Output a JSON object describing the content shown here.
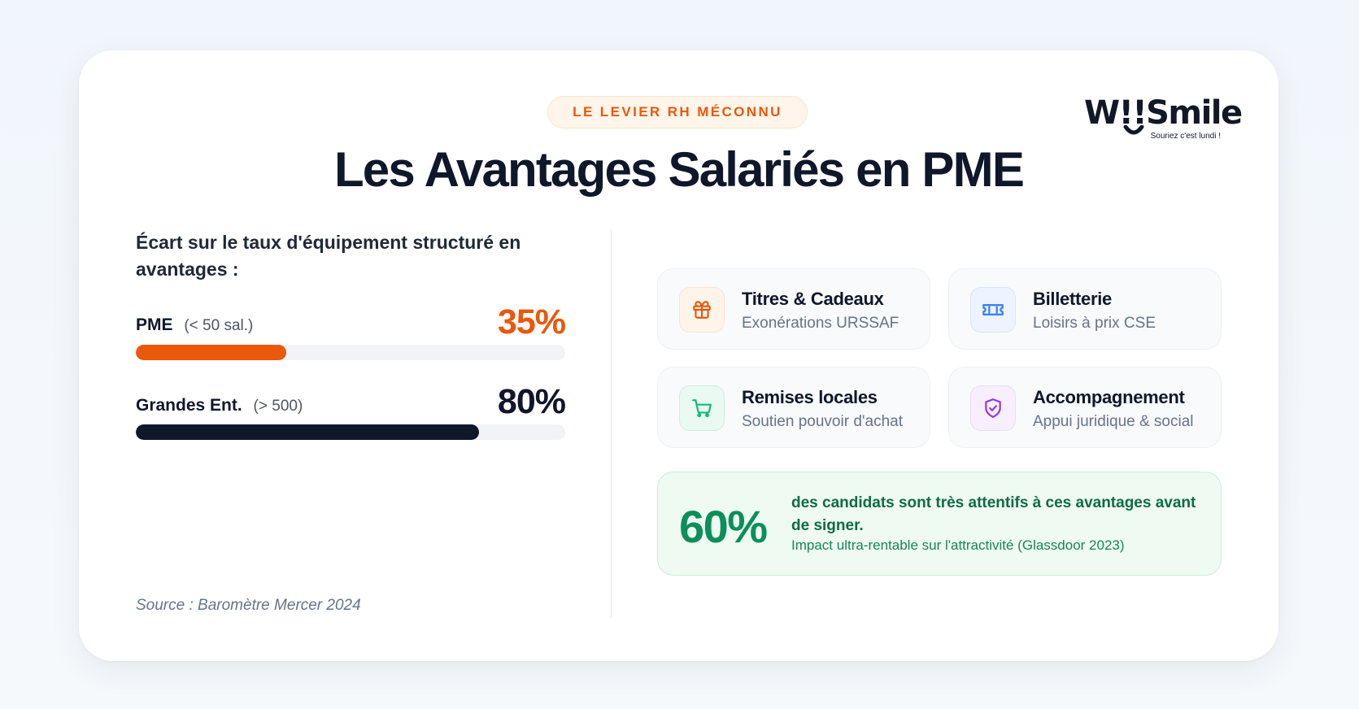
{
  "badge": "LE LEVIER RH MÉCONNU",
  "title": "Les Avantages Salariés en PME",
  "logo": {
    "word": "W!!Smile",
    "tagline": "Souriez c'est lundi !"
  },
  "colors": {
    "accent_orange": "#ea580c",
    "dark": "#0f172a",
    "green": "#0c8f5a"
  },
  "comparison": {
    "heading": "Écart sur le taux d'équipement structuré en avantages :",
    "rows": [
      {
        "label": "PME",
        "sub": "(< 50 sal.)",
        "value": "35%",
        "fill": 0.35,
        "color": "#ea580c"
      },
      {
        "label": "Grandes Ent.",
        "sub": "(> 500)",
        "value": "80%",
        "fill": 0.8,
        "color": "#0f172a"
      }
    ],
    "source": "Source : Baromètre Mercer 2024"
  },
  "features": [
    {
      "title": "Titres & Cadeaux",
      "subtitle": "Exonérations URSSAF",
      "icon": "gift-icon",
      "color": "#ea580c",
      "bg": "#fff4ea",
      "border": "#fde4cf"
    },
    {
      "title": "Billetterie",
      "subtitle": "Loisirs à prix CSE",
      "icon": "ticket-icon",
      "color": "#3b82f6",
      "bg": "#eef4ff",
      "border": "#d8e5fb"
    },
    {
      "title": "Remises locales",
      "subtitle": "Soutien pouvoir d'achat",
      "icon": "cart-icon",
      "color": "#10b981",
      "bg": "#eafaf2",
      "border": "#cdf0de"
    },
    {
      "title": "Accompagnement",
      "subtitle": "Appui juridique & social",
      "icon": "shield-check-icon",
      "color": "#9333ea",
      "bg": "#f7efff",
      "border": "#eadcfb"
    }
  ],
  "stat": {
    "value": "60%",
    "line1": "des candidats sont très attentifs à ces avantages avant de signer.",
    "line2": "Impact ultra-rentable sur l'attractivité (Glassdoor 2023)"
  }
}
